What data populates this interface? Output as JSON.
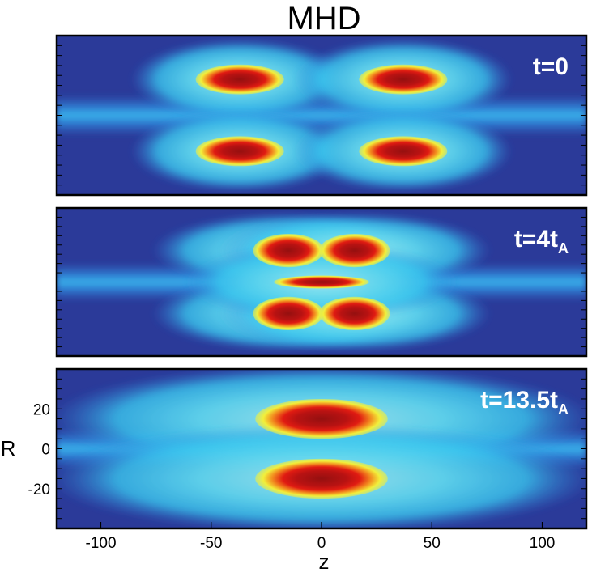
{
  "chart_data": {
    "type": "heatmap",
    "title": "MHD",
    "xlabel": "z",
    "ylabel": "R",
    "xlim": [
      -120,
      120
    ],
    "ylim": [
      -40,
      40
    ],
    "x_ticks": [
      -100,
      -50,
      0,
      50,
      100
    ],
    "y_ticks": [
      20,
      0,
      -20
    ],
    "x_tick_labels": [
      "-100",
      "-50",
      "0",
      "50",
      "100"
    ],
    "y_tick_labels": [
      "20",
      "0",
      "-20"
    ],
    "colormap": [
      "#2b3a99",
      "#2f7fd8",
      "#39c5ee",
      "#f2ef3a",
      "#f2891e",
      "#e01b12",
      "#951010"
    ],
    "panels": [
      {
        "label_main": "t=0",
        "label_sub": "",
        "blobs": [
          {
            "z": -37,
            "R": 18,
            "intensity": 1.0
          },
          {
            "z": 37,
            "R": 18,
            "intensity": 1.0
          },
          {
            "z": -37,
            "R": -18,
            "intensity": 1.0
          },
          {
            "z": 37,
            "R": -18,
            "intensity": 1.0
          }
        ]
      },
      {
        "label_main": "t=4t",
        "label_sub": "A",
        "blobs": [
          {
            "z": -15,
            "R": 17,
            "intensity": 1.0
          },
          {
            "z": 15,
            "R": 17,
            "intensity": 1.0
          },
          {
            "z": -15,
            "R": -17,
            "intensity": 1.0
          },
          {
            "z": 15,
            "R": -17,
            "intensity": 1.0
          },
          {
            "z": 0,
            "R": 0,
            "intensity": 0.9
          }
        ]
      },
      {
        "label_main": "t=13.5t",
        "label_sub": "A",
        "blobs": [
          {
            "z": 0,
            "R": 15,
            "intensity": 1.0
          },
          {
            "z": 0,
            "R": -15,
            "intensity": 1.0
          }
        ]
      }
    ]
  }
}
